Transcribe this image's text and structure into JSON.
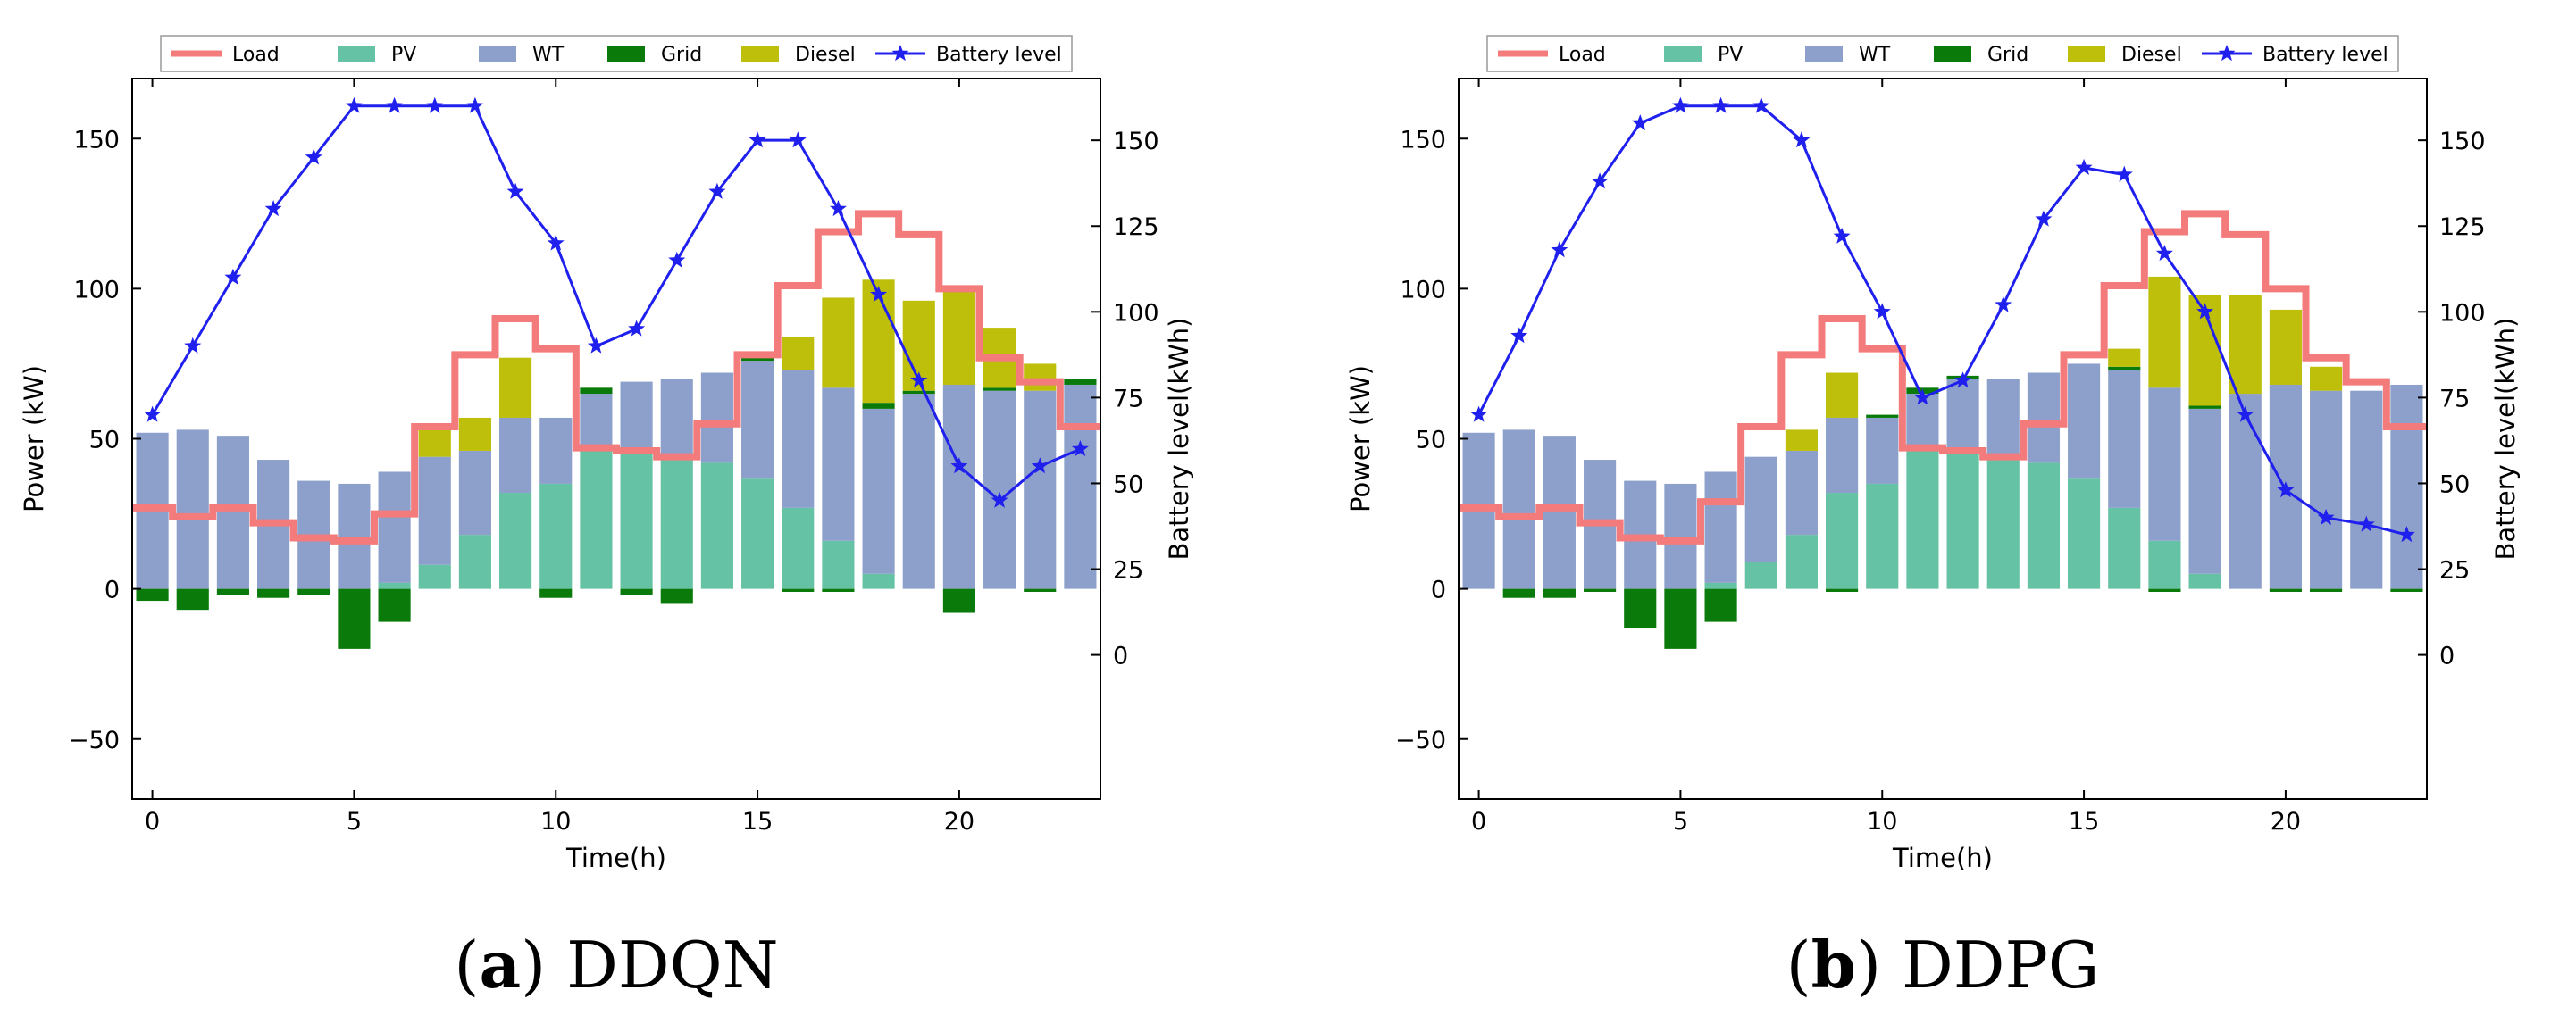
{
  "chart_data": [
    {
      "type": "bar",
      "subtitle_letter": "a",
      "subtitle_name": "DDQN",
      "xlabel": "Time(h)",
      "ylabel": "Power (kW)",
      "y2label": "Battery level(kWh)",
      "xlim": [
        -0.5,
        23.5
      ],
      "ylim": [
        -70,
        170
      ],
      "y2lim": [
        -42,
        168
      ],
      "xticks": [
        0,
        5,
        10,
        15,
        20
      ],
      "yticks": [
        -50,
        0,
        50,
        100,
        150
      ],
      "y2ticks": [
        0,
        25,
        50,
        75,
        100,
        125,
        150
      ],
      "legend": [
        "Load",
        "PV",
        "WT",
        "Grid",
        "Diesel",
        "Battery level"
      ],
      "legend_position": "top-center",
      "colors": {
        "load": "#f37b7b",
        "pv": "#66c2a5",
        "wt": "#8da0cb",
        "grid": "#0a7a0a",
        "diesel": "#bdbf0a",
        "battery": "#2020ee"
      },
      "x": [
        0,
        1,
        2,
        3,
        4,
        5,
        6,
        7,
        8,
        9,
        10,
        11,
        12,
        13,
        14,
        15,
        16,
        17,
        18,
        19,
        20,
        21,
        22,
        23
      ],
      "series": [
        {
          "name": "PV",
          "values": [
            0,
            0,
            0,
            0,
            0,
            0,
            2,
            8,
            18,
            32,
            35,
            46,
            46,
            44,
            42,
            37,
            27,
            16,
            5,
            0,
            0,
            0,
            0,
            0
          ]
        },
        {
          "name": "WT",
          "values": [
            52,
            53,
            51,
            43,
            36,
            35,
            37,
            36,
            28,
            25,
            22,
            19,
            23,
            26,
            30,
            39,
            46,
            51,
            55,
            65,
            68,
            66,
            66,
            68
          ]
        },
        {
          "name": "Grid",
          "values": [
            -4,
            -7,
            -2,
            -3,
            -2,
            -20,
            -11,
            0,
            0,
            0,
            -3,
            2,
            -2,
            -5,
            0,
            1,
            -1,
            -1,
            2,
            1,
            -8,
            1,
            -1,
            2
          ]
        },
        {
          "name": "Diesel",
          "values": [
            0,
            0,
            0,
            0,
            0,
            0,
            0,
            10,
            11,
            20,
            0,
            0,
            0,
            0,
            0,
            0,
            11,
            30,
            41,
            30,
            32,
            20,
            9,
            0
          ]
        },
        {
          "name": "Load",
          "values": [
            27,
            24,
            27,
            22,
            17,
            16,
            25,
            54,
            78,
            90,
            80,
            47,
            46,
            44,
            55,
            78,
            101,
            119,
            125,
            118,
            100,
            77,
            69,
            54
          ]
        },
        {
          "name": "Battery level",
          "values": [
            70,
            90,
            110,
            130,
            145,
            160,
            160,
            160,
            160,
            135,
            120,
            90,
            95,
            115,
            135,
            150,
            150,
            130,
            105,
            80,
            55,
            45,
            55,
            60
          ]
        }
      ]
    },
    {
      "type": "bar",
      "subtitle_letter": "b",
      "subtitle_name": "DDPG",
      "xlabel": "Time(h)",
      "ylabel": "Power (kW)",
      "y2label": "Battery level(kWh)",
      "xlim": [
        -0.5,
        23.5
      ],
      "ylim": [
        -70,
        170
      ],
      "y2lim": [
        -42,
        168
      ],
      "xticks": [
        0,
        5,
        10,
        15,
        20
      ],
      "yticks": [
        -50,
        0,
        50,
        100,
        150
      ],
      "y2ticks": [
        0,
        25,
        50,
        75,
        100,
        125,
        150
      ],
      "legend": [
        "Load",
        "PV",
        "WT",
        "Grid",
        "Diesel",
        "Battery level"
      ],
      "legend_position": "top-center",
      "colors": {
        "load": "#f37b7b",
        "pv": "#66c2a5",
        "wt": "#8da0cb",
        "grid": "#0a7a0a",
        "diesel": "#bdbf0a",
        "battery": "#2020ee"
      },
      "x": [
        0,
        1,
        2,
        3,
        4,
        5,
        6,
        7,
        8,
        9,
        10,
        11,
        12,
        13,
        14,
        15,
        16,
        17,
        18,
        19,
        20,
        21,
        22,
        23
      ],
      "series": [
        {
          "name": "PV",
          "values": [
            0,
            0,
            0,
            0,
            0,
            0,
            2,
            9,
            18,
            32,
            35,
            46,
            46,
            44,
            42,
            37,
            27,
            16,
            5,
            0,
            0,
            0,
            0,
            0
          ]
        },
        {
          "name": "WT",
          "values": [
            52,
            53,
            51,
            43,
            36,
            35,
            37,
            35,
            28,
            25,
            22,
            19,
            24,
            26,
            30,
            38,
            46,
            51,
            55,
            65,
            68,
            66,
            66,
            68
          ]
        },
        {
          "name": "Grid",
          "values": [
            0,
            -3,
            -3,
            -1,
            -13,
            -20,
            -11,
            0,
            0,
            -1,
            1,
            2,
            1,
            0,
            0,
            0,
            1,
            -1,
            1,
            0,
            -1,
            -1,
            0,
            -1
          ]
        },
        {
          "name": "Diesel",
          "values": [
            0,
            0,
            0,
            0,
            0,
            0,
            0,
            0,
            7,
            15,
            0,
            0,
            0,
            0,
            0,
            0,
            6,
            37,
            37,
            33,
            25,
            8,
            0,
            0
          ]
        },
        {
          "name": "Load",
          "values": [
            27,
            24,
            27,
            22,
            17,
            16,
            29,
            54,
            78,
            90,
            80,
            47,
            46,
            44,
            55,
            78,
            101,
            119,
            125,
            118,
            100,
            77,
            69,
            54
          ]
        },
        {
          "name": "Battery level",
          "values": [
            70,
            93,
            118,
            138,
            155,
            160,
            160,
            160,
            150,
            122,
            100,
            75,
            80,
            102,
            127,
            142,
            140,
            117,
            100,
            70,
            48,
            40,
            38,
            35
          ]
        }
      ]
    }
  ]
}
